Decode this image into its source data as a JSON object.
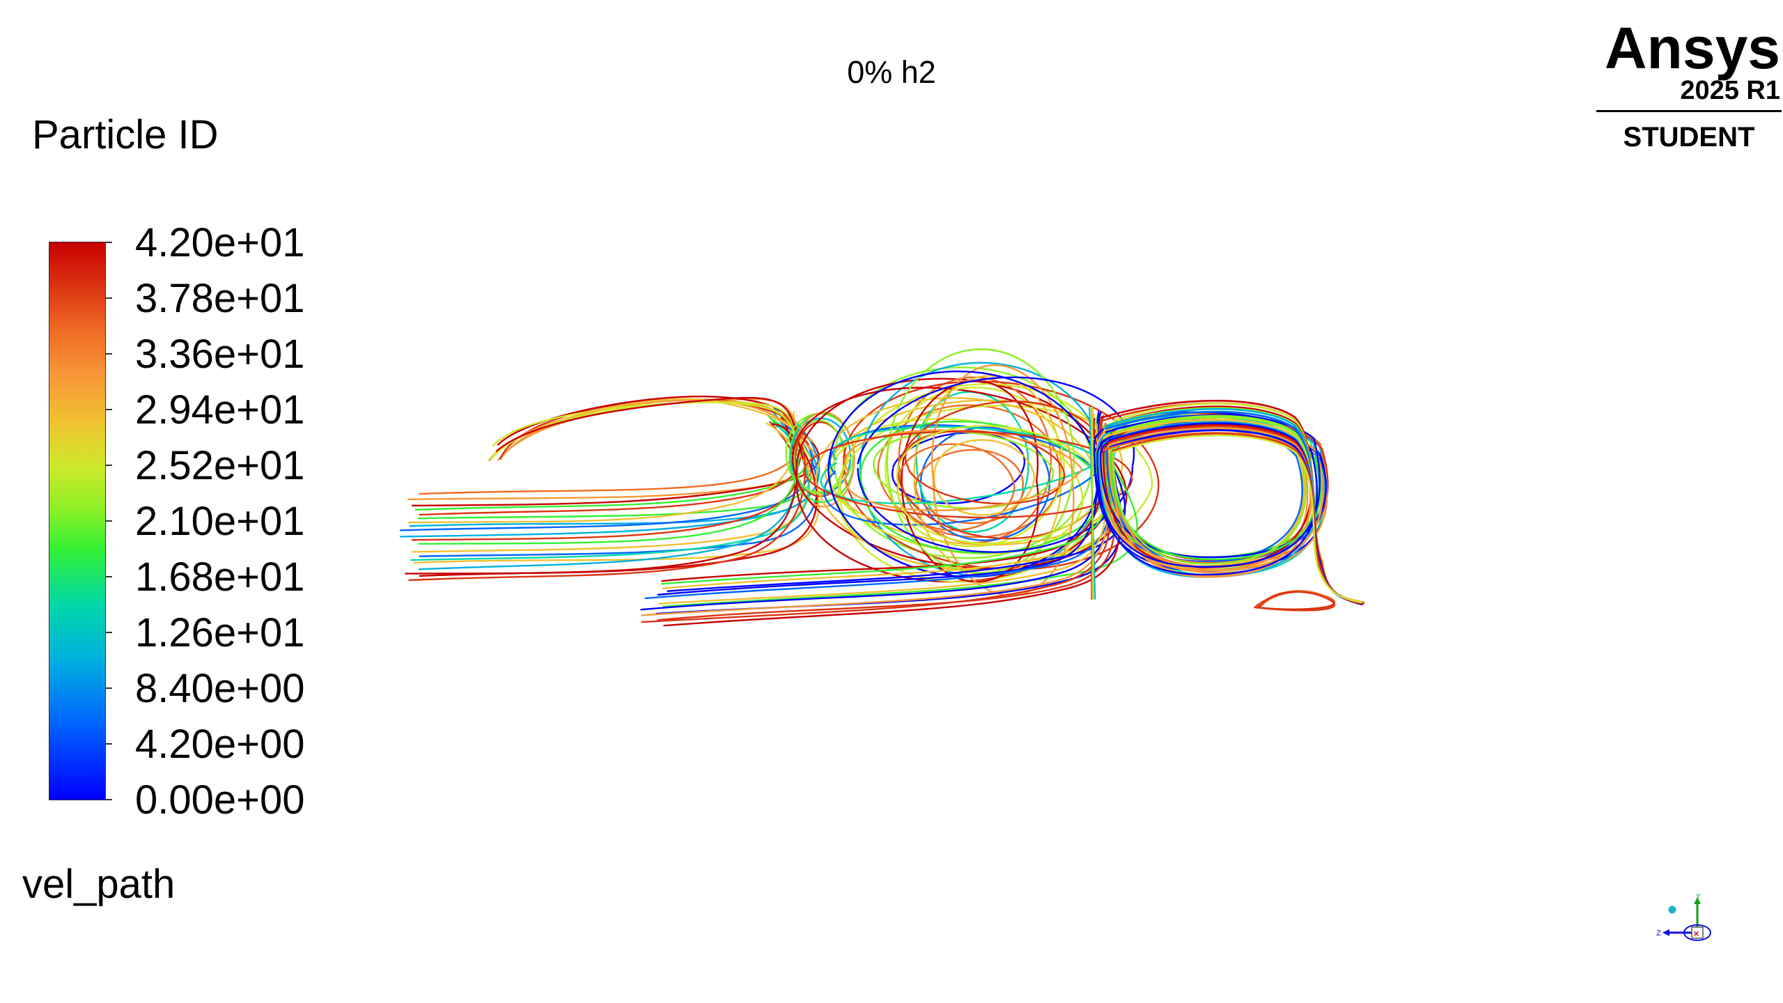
{
  "view_title": "0% h2",
  "legend": {
    "title": "Particle ID",
    "tick_labels": [
      "4.20e+01",
      "3.78e+01",
      "3.36e+01",
      "2.94e+01",
      "2.52e+01",
      "2.10e+01",
      "1.68e+01",
      "1.26e+01",
      "8.40e+00",
      "4.20e+00",
      "0.00e+00"
    ],
    "min": 0,
    "max": 42
  },
  "scene_name": "vel_path",
  "logo": {
    "brand": "Ansys",
    "version": "2025 R1",
    "edition": "STUDENT"
  },
  "triad": {
    "y_label": "Y",
    "z_label": "Z",
    "colors": {
      "x": "#e01010",
      "y": "#10a010",
      "z": "#1010e0"
    }
  },
  "pathline_colors": [
    "#0000ff",
    "#0066ff",
    "#00b0e0",
    "#00d8a8",
    "#34f034",
    "#8cf026",
    "#d0e82a",
    "#f0c030",
    "#f89838",
    "#f06c24",
    "#dc3412",
    "#c80000"
  ]
}
